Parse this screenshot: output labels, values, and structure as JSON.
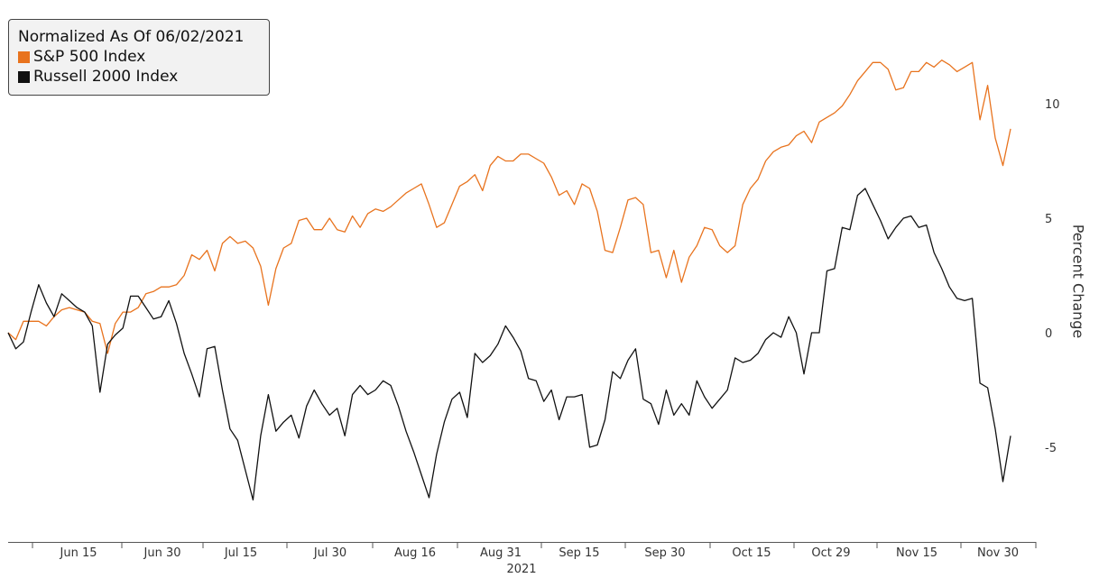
{
  "chart_data": {
    "type": "line",
    "legend_title": "Normalized As Of 06/02/2021",
    "ylabel": "Percent Change",
    "xlabel": "2021",
    "ylim": [
      -9,
      13.5
    ],
    "y_ticks": [
      10,
      5,
      0,
      -5
    ],
    "x_ticks": [
      "Jun 15",
      "Jun 30",
      "Jul 15",
      "Jul 30",
      "Aug 16",
      "Aug 31",
      "Sep 15",
      "Sep 30",
      "Oct 15",
      "Oct 29",
      "Nov 15",
      "Nov 30"
    ],
    "legend_position": "top-left",
    "grid": false,
    "series": [
      {
        "name": "S&P 500 Index",
        "color": "#e8731e",
        "values": [
          0,
          -0.3,
          0.5,
          0.5,
          0.5,
          0.3,
          0.7,
          1,
          1.1,
          1,
          0.9,
          0.5,
          0.4,
          -0.9,
          0.4,
          0.9,
          0.9,
          1.1,
          1.7,
          1.8,
          2.0,
          2.0,
          2.1,
          2.5,
          3.4,
          3.2,
          3.6,
          2.7,
          3.9,
          4.2,
          3.9,
          4.0,
          3.7,
          2.9,
          1.2,
          2.8,
          3.7,
          3.9,
          4.9,
          5.0,
          4.5,
          4.5,
          5.0,
          4.5,
          4.4,
          5.1,
          4.6,
          5.2,
          5.4,
          5.3,
          5.5,
          5.8,
          6.1,
          6.3,
          6.5,
          5.6,
          4.6,
          4.8,
          5.6,
          6.4,
          6.6,
          6.9,
          6.2,
          7.3,
          7.7,
          7.5,
          7.5,
          7.8,
          7.8,
          7.6,
          7.4,
          6.8,
          6.0,
          6.2,
          5.6,
          6.5,
          6.3,
          5.3,
          3.6,
          3.5,
          4.6,
          5.8,
          5.9,
          5.6,
          3.5,
          3.6,
          2.4,
          3.6,
          2.2,
          3.3,
          3.8,
          4.6,
          4.5,
          3.8,
          3.5,
          3.8,
          5.6,
          6.3,
          6.7,
          7.5,
          7.9,
          8.1,
          8.2,
          8.6,
          8.8,
          8.3,
          9.2,
          9.4,
          9.6,
          9.9,
          10.4,
          11.0,
          11.4,
          11.8,
          11.8,
          11.5,
          10.6,
          10.7,
          11.4,
          11.4,
          11.8,
          11.6,
          11.9,
          11.7,
          11.4,
          11.6,
          11.8,
          9.3,
          10.8,
          8.5,
          7.3,
          8.9
        ]
      },
      {
        "name": "Russell 2000 Index",
        "color": "#111111",
        "values": [
          0,
          -0.7,
          -0.4,
          0.9,
          2.1,
          1.3,
          0.7,
          1.7,
          1.4,
          1.1,
          0.9,
          0.3,
          -2.6,
          -0.5,
          -0.1,
          0.2,
          1.6,
          1.6,
          1.1,
          0.6,
          0.7,
          1.4,
          0.4,
          -0.9,
          -1.8,
          -2.8,
          -0.7,
          -0.6,
          -2.5,
          -4.2,
          -4.7,
          -6.0,
          -7.3,
          -4.5,
          -2.7,
          -4.3,
          -3.9,
          -3.6,
          -4.6,
          -3.2,
          -2.5,
          -3.1,
          -3.6,
          -3.3,
          -4.5,
          -2.7,
          -2.3,
          -2.7,
          -2.5,
          -2.1,
          -2.3,
          -3.2,
          -4.3,
          -5.2,
          -6.2,
          -7.2,
          -5.3,
          -3.9,
          -2.9,
          -2.6,
          -3.7,
          -0.9,
          -1.3,
          -1.0,
          -0.5,
          0.3,
          -0.2,
          -0.8,
          -2.0,
          -2.1,
          -3.0,
          -2.5,
          -3.8,
          -2.8,
          -2.8,
          -2.7,
          -5.0,
          -4.9,
          -3.8,
          -1.7,
          -2.0,
          -1.2,
          -0.7,
          -2.9,
          -3.1,
          -4.0,
          -2.5,
          -3.6,
          -3.1,
          -3.6,
          -2.1,
          -2.8,
          -3.3,
          -2.9,
          -2.5,
          -1.1,
          -1.3,
          -1.2,
          -0.9,
          -0.3,
          0.0,
          -0.2,
          0.7,
          0.0,
          -1.8,
          0.0,
          0.0,
          2.7,
          2.8,
          4.6,
          4.5,
          6.0,
          6.3,
          5.6,
          4.9,
          4.1,
          4.6,
          5.0,
          5.1,
          4.6,
          4.7,
          3.5,
          2.8,
          2.0,
          1.5,
          1.4,
          1.5,
          -2.2,
          -2.4,
          -4.2,
          -6.5,
          -4.5
        ]
      }
    ]
  }
}
